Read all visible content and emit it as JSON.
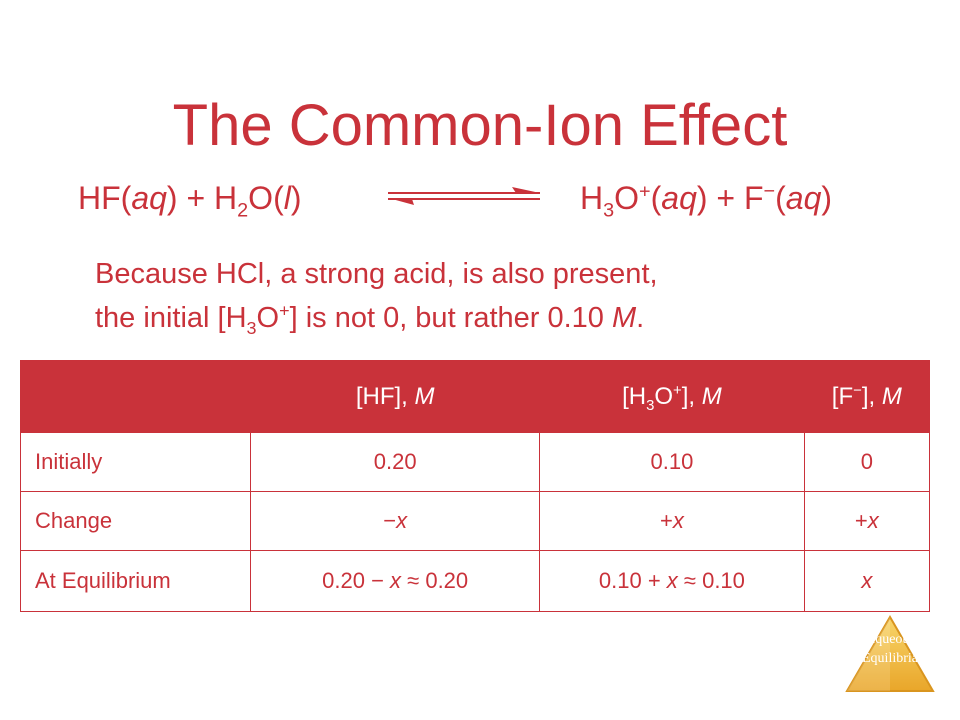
{
  "slide": {
    "title": "The Common-Ion Effect",
    "equation": {
      "hf": "HF",
      "phase_aq": "aq",
      "plus": "+",
      "h2o_h": "H",
      "h2o_sub": "2",
      "h2o_o": "O",
      "phase_l": "l",
      "h3o_h": "H",
      "h3o_sub": "3",
      "h3o_o": "O",
      "h3o_sup": "+",
      "f": "F",
      "f_sup": "−"
    },
    "paragraph": {
      "line1": "Because HCl, a strong acid, is also present,",
      "line2_pre": "the initial [H",
      "line2_sub": "3",
      "line2_o": "O",
      "line2_sup": "+",
      "line2_post": "] is not 0, but rather 0.10 ",
      "line2_unit": "M",
      "line2_end": "."
    },
    "table": {
      "headers": {
        "hf_pre": "[HF], ",
        "hf_unit": "M",
        "h3o_pre": "[H",
        "h3o_sub": "3",
        "h3o_o": "O",
        "h3o_sup": "+",
        "h3o_post": "], ",
        "h3o_unit": "M",
        "f_pre": "[F",
        "f_sup": "−",
        "f_post": "], ",
        "f_unit": "M"
      },
      "rows": [
        {
          "label": "Initially",
          "hf": "0.20",
          "h3o": "0.10",
          "f": "0"
        },
        {
          "label": "Change",
          "hf_sign": "−",
          "hf_var": "x",
          "h3o_sign": "+",
          "h3o_var": "x",
          "f_sign": "+",
          "f_var": "x"
        },
        {
          "label": "At Equilibrium",
          "hf_a": "0.20 − ",
          "hf_var": "x",
          "hf_b": " ≈ 0.20",
          "h3o_a": "0.10 + ",
          "h3o_var": "x",
          "h3o_b": " ≈ 0.10",
          "f_var": "x"
        }
      ]
    },
    "badge": {
      "line1": "Aqueous",
      "line2": "Equilibria"
    },
    "colors": {
      "accent": "#c9323a",
      "badge": "#f3c24b"
    }
  }
}
